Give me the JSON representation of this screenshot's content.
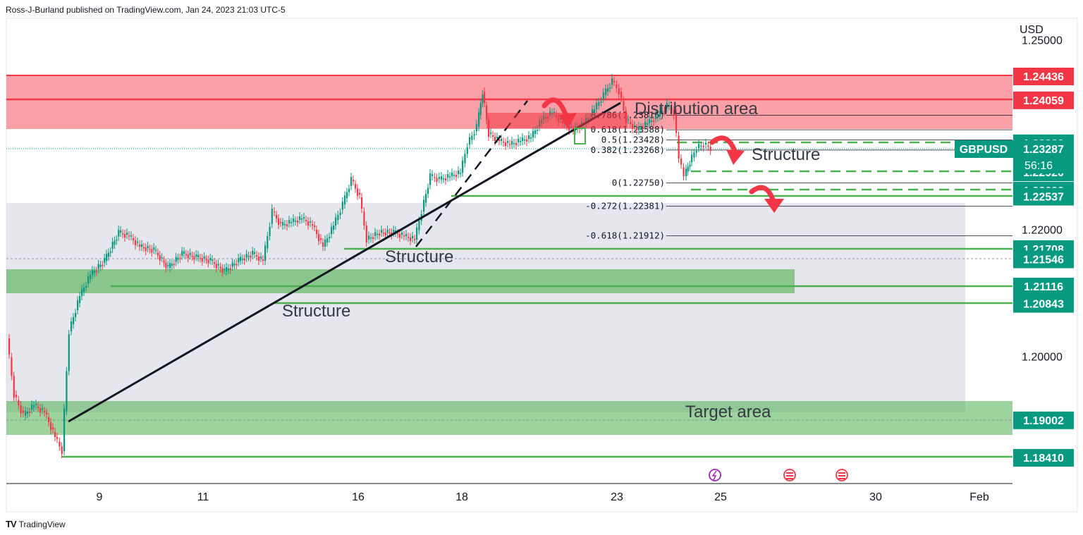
{
  "header": {
    "published_by": "Ross-J-Burland published on TradingView.com, Jan 24, 2023 21:03 UTC-5"
  },
  "footer": {
    "brand": "TradingView",
    "logo": "tradingview-logo-icon"
  },
  "chart_data": {
    "type": "candlestick",
    "symbol": "GBPUSD",
    "currency_label": "USD",
    "last_price": "1.23287",
    "countdown": "56:16",
    "ylim": [
      1.178,
      1.2525
    ],
    "y_ticks": [
      "1.25000",
      "1.22000",
      "1.20000"
    ],
    "x_ticks": [
      "9",
      "11",
      "16",
      "18",
      "23",
      "25",
      "30",
      "Feb"
    ],
    "price_labels": [
      {
        "value": "1.24436",
        "color": "#f23645"
      },
      {
        "value": "1.24059",
        "color": "#f23645"
      },
      {
        "value": "1.23380",
        "color": "#089981"
      },
      {
        "value": "1.22920",
        "color": "#089981"
      },
      {
        "value": "1.22632",
        "color": "#089981"
      },
      {
        "value": "1.22537",
        "color": "#089981"
      },
      {
        "value": "1.21708",
        "color": "#089981"
      },
      {
        "value": "1.21546",
        "color": "#089981"
      },
      {
        "value": "1.21116",
        "color": "#089981"
      },
      {
        "value": "1.20843",
        "color": "#089981"
      },
      {
        "value": "1.19002",
        "color": "#089981"
      },
      {
        "value": "1.18410",
        "color": "#089981"
      }
    ],
    "fib_levels": [
      {
        "label": "0.786(1.23816)",
        "price": 1.23816
      },
      {
        "label": "0.618(1.23588)",
        "price": 1.23588
      },
      {
        "label": "0.5(1.23428)",
        "price": 1.23428
      },
      {
        "label": "0.382(1.23268)",
        "price": 1.23268
      },
      {
        "label": "0(1.22750)",
        "price": 1.2275
      },
      {
        "label": "-0.272(1.22381)",
        "price": 1.22381
      },
      {
        "label": "-0.618(1.21912)",
        "price": 1.21912
      }
    ],
    "zones": [
      {
        "name": "Distribution area",
        "from": 1.2338,
        "to": 1.24436,
        "color": "#f7525f"
      },
      {
        "name": "Target area",
        "from": 1.1868,
        "to": 1.19272,
        "color": "#4caf50"
      }
    ],
    "annotations": [
      "Distribution area",
      "Structure",
      "Structure",
      "Structure",
      "Target area"
    ],
    "colors": {
      "up": "#089981",
      "down": "#f23645",
      "support": "#4caf50",
      "resistance": "#f23645"
    }
  }
}
